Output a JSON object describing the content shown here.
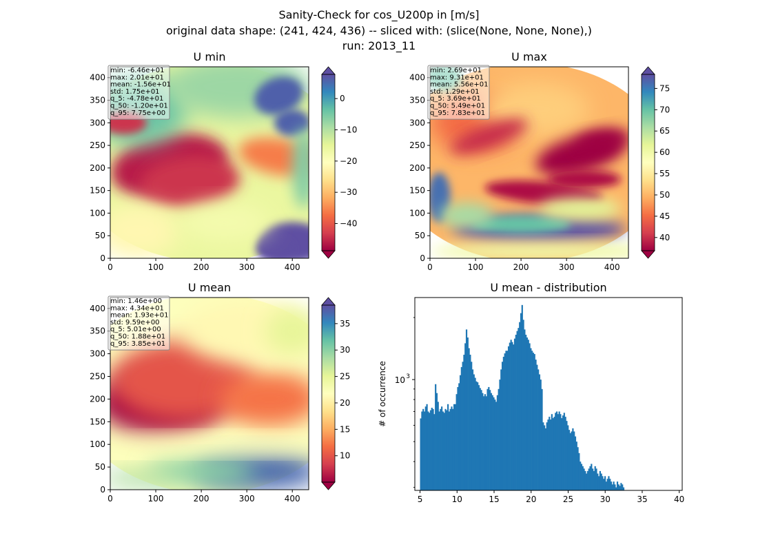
{
  "figure": {
    "suptitle": [
      "Sanity-Check for cos_U200p in [m/s]",
      "original data shape: (241, 424, 436) -- sliced with: (slice(None, None, None),)",
      "run: 2013_11"
    ]
  },
  "colors": {
    "hist_bar": "#1f77b4",
    "spectral": [
      "#9e0142",
      "#d53e4f",
      "#f46d43",
      "#fdae61",
      "#fee08b",
      "#ffffbf",
      "#e6f598",
      "#abdda4",
      "#66c2a5",
      "#3288bd",
      "#5e4fa2"
    ]
  },
  "chart_data": [
    {
      "type": "heatmap",
      "title": "U min",
      "colormap": "Spectral",
      "xlim": [
        0,
        436
      ],
      "ylim": [
        0,
        424
      ],
      "xticks": [
        0,
        100,
        200,
        300,
        400
      ],
      "yticks": [
        0,
        50,
        100,
        150,
        200,
        250,
        300,
        350,
        400
      ],
      "vmin": -48.7,
      "vmax": 7.75,
      "colorbar_ticks": [
        0,
        -10,
        -20,
        -30,
        -40
      ],
      "colorbar_extend": "both",
      "stats": [
        "min: -6.46e+01",
        "max: 2.01e+01",
        "mean: -1.56e+01",
        "std: 1.75e+01",
        "q_5: -4.78e+01",
        "q_50: -1.20e+01",
        "q_95: 7.75e+00"
      ]
    },
    {
      "type": "heatmap",
      "title": "U max",
      "colormap": "Spectral",
      "xlim": [
        0,
        436
      ],
      "ylim": [
        0,
        424
      ],
      "xticks": [
        0,
        100,
        200,
        300,
        400
      ],
      "yticks": [
        0,
        50,
        100,
        150,
        200,
        250,
        300,
        350,
        400
      ],
      "vmin": 36.9,
      "vmax": 78.3,
      "colorbar_ticks": [
        75,
        70,
        65,
        60,
        55,
        50,
        45,
        40
      ],
      "colorbar_extend": "both",
      "stats": [
        "min: 2.69e+01",
        "max: 9.31e+01",
        "mean: 5.56e+01",
        "std: 1.29e+01",
        "q_5: 3.69e+01",
        "q_50: 5.49e+01",
        "q_95: 7.83e+01"
      ]
    },
    {
      "type": "heatmap",
      "title": "U mean",
      "colormap": "Spectral",
      "xlim": [
        0,
        436
      ],
      "ylim": [
        0,
        424
      ],
      "xticks": [
        0,
        100,
        200,
        300,
        400
      ],
      "yticks": [
        0,
        50,
        100,
        150,
        200,
        250,
        300,
        350,
        400
      ],
      "vmin": 5.01,
      "vmax": 38.5,
      "colorbar_ticks": [
        35,
        30,
        25,
        20,
        15,
        10
      ],
      "colorbar_extend": "both",
      "stats": [
        "min: 1.46e+00",
        "max: 4.34e+01",
        "mean: 1.93e+01",
        "std: 9.59e+00",
        "q_5: 5.01e+00",
        "q_50: 1.88e+01",
        "q_95: 3.85e+01"
      ]
    },
    {
      "type": "bar",
      "title": "U mean - distribution",
      "ylabel": "# of occurrence",
      "xlim": [
        4.3,
        40.4
      ],
      "ylog": true,
      "ylim": [
        290,
        2500
      ],
      "xticks": [
        5,
        10,
        15,
        20,
        25,
        30,
        35,
        40
      ],
      "ytick_major_label": "10",
      "ytick_major_exp": "3",
      "ytick_major_value": 1000,
      "bin_start": 5.0,
      "bin_width": 0.167,
      "counts": [
        648,
        700,
        720,
        700,
        740,
        760,
        700,
        690,
        710,
        730,
        720,
        680,
        950,
        860,
        780,
        700,
        720,
        740,
        700,
        690,
        720,
        710,
        760,
        700,
        720,
        740,
        720,
        760,
        760,
        850,
        920,
        960,
        1050,
        1150,
        1220,
        1320,
        1500,
        1750,
        1600,
        1420,
        1320,
        1220,
        1120,
        1060,
        1020,
        980,
        970,
        940,
        910,
        890,
        860,
        830,
        850,
        830,
        900,
        920,
        890,
        860,
        840,
        820,
        800,
        780,
        840,
        900,
        1000,
        1120,
        1220,
        1290,
        1340,
        1380,
        1380,
        1450,
        1510,
        1560,
        1520,
        1480,
        1580,
        1650,
        1720,
        1780,
        1900,
        2100,
        2300,
        1950,
        1750,
        1650,
        1600,
        1560,
        1500,
        1420,
        1380,
        1350,
        1330,
        1250,
        1180,
        1120,
        1060,
        1000,
        900,
        620,
        600,
        580,
        620,
        640,
        660,
        640,
        680,
        650,
        660,
        690,
        700,
        680,
        700,
        680,
        650,
        670,
        690,
        660,
        630,
        600,
        570,
        550,
        560,
        580,
        560,
        530,
        500,
        470,
        440,
        400,
        390,
        380,
        370,
        360,
        350,
        360,
        370,
        380,
        390,
        370,
        360,
        380,
        370,
        350,
        340,
        360,
        350,
        340,
        330,
        340,
        320,
        330,
        340,
        330,
        320,
        310,
        320,
        310,
        300,
        320,
        310,
        305,
        315,
        310,
        300
      ]
    }
  ]
}
